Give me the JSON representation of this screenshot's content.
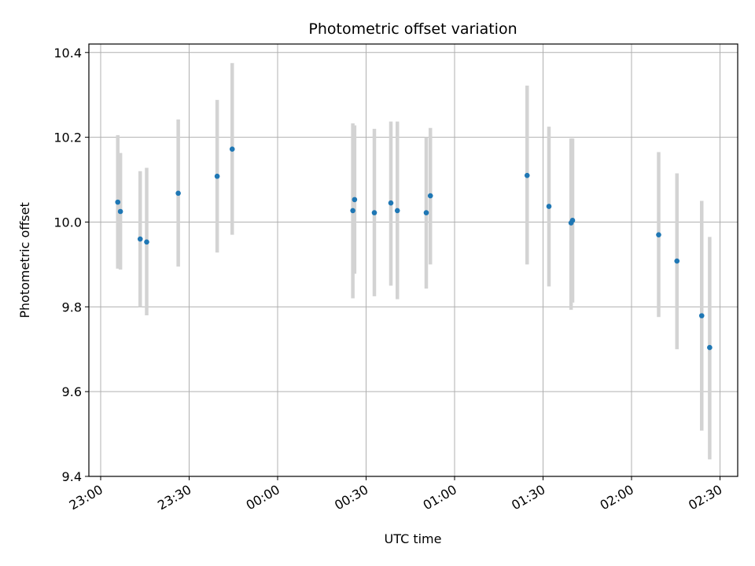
{
  "chart_data": {
    "type": "scatter",
    "title": "Photometric offset variation",
    "xlabel": "UTC time",
    "ylabel": "Photometric offset",
    "x_axis_kind": "time",
    "x_tick_labels": [
      "23:00",
      "23:30",
      "00:00",
      "00:30",
      "01:00",
      "01:30",
      "02:00",
      "02:30"
    ],
    "xlim": [
      "22:56",
      "02:36"
    ],
    "ylim": [
      9.4,
      10.42
    ],
    "y_ticks": [
      9.4,
      9.6,
      9.8,
      10.0,
      10.2,
      10.4
    ],
    "grid": true,
    "marker_color": "#1f77b4",
    "errorbar_color": "#d3d3d3",
    "points": [
      {
        "t": "23:05.8",
        "y": 10.047,
        "lo": 9.89,
        "hi": 10.205
      },
      {
        "t": "23:06.7",
        "y": 10.025,
        "lo": 9.888,
        "hi": 10.163
      },
      {
        "t": "23:13.4",
        "y": 9.96,
        "lo": 9.8,
        "hi": 10.12
      },
      {
        "t": "23:15.6",
        "y": 9.953,
        "lo": 9.78,
        "hi": 10.128
      },
      {
        "t": "23:26.3",
        "y": 10.068,
        "lo": 9.895,
        "hi": 10.242
      },
      {
        "t": "23:39.5",
        "y": 10.108,
        "lo": 9.928,
        "hi": 10.288
      },
      {
        "t": "23:44.6",
        "y": 10.172,
        "lo": 9.97,
        "hi": 10.375
      },
      {
        "t": "00:25.5",
        "y": 10.027,
        "lo": 9.82,
        "hi": 10.233
      },
      {
        "t": "00:26.1",
        "y": 10.053,
        "lo": 9.878,
        "hi": 10.228
      },
      {
        "t": "00:32.8",
        "y": 10.022,
        "lo": 9.825,
        "hi": 10.22
      },
      {
        "t": "00:38.4",
        "y": 10.045,
        "lo": 9.85,
        "hi": 10.237
      },
      {
        "t": "00:40.6",
        "y": 10.027,
        "lo": 9.818,
        "hi": 10.237
      },
      {
        "t": "00:50.4",
        "y": 10.022,
        "lo": 9.843,
        "hi": 10.2
      },
      {
        "t": "00:51.8",
        "y": 10.062,
        "lo": 9.9,
        "hi": 10.222
      },
      {
        "t": "01:24.6",
        "y": 10.11,
        "lo": 9.9,
        "hi": 10.322
      },
      {
        "t": "01:32.0",
        "y": 10.037,
        "lo": 9.848,
        "hi": 10.225
      },
      {
        "t": "01:39.5",
        "y": 9.998,
        "lo": 9.793,
        "hi": 10.197
      },
      {
        "t": "01:40.0",
        "y": 10.004,
        "lo": 9.81,
        "hi": 10.197
      },
      {
        "t": "02:09.2",
        "y": 9.97,
        "lo": 9.776,
        "hi": 10.165
      },
      {
        "t": "02:15.4",
        "y": 9.908,
        "lo": 9.7,
        "hi": 10.115
      },
      {
        "t": "02:23.8",
        "y": 9.779,
        "lo": 9.508,
        "hi": 10.05
      },
      {
        "t": "02:26.5",
        "y": 9.704,
        "lo": 9.44,
        "hi": 9.965
      }
    ]
  }
}
